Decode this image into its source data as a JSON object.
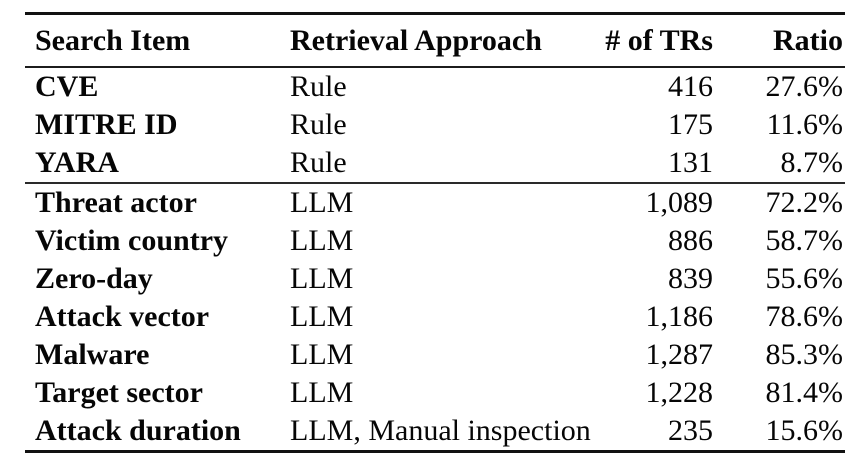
{
  "table": {
    "columns": {
      "search_item": "Search Item",
      "retrieval_approach": "Retrieval Approach",
      "num_trs": "# of TRs",
      "ratio": "Ratio"
    },
    "groups": [
      {
        "rows": [
          {
            "search_item": "CVE",
            "retrieval_approach": "Rule",
            "num_trs": "416",
            "ratio": "27.6%"
          },
          {
            "search_item": "MITRE ID",
            "retrieval_approach": "Rule",
            "num_trs": "175",
            "ratio": "11.6%"
          },
          {
            "search_item": "YARA",
            "retrieval_approach": "Rule",
            "num_trs": "131",
            "ratio": "8.7%"
          }
        ]
      },
      {
        "rows": [
          {
            "search_item": "Threat actor",
            "retrieval_approach": "LLM",
            "num_trs": "1,089",
            "ratio": "72.2%"
          },
          {
            "search_item": "Victim country",
            "retrieval_approach": "LLM",
            "num_trs": "886",
            "ratio": "58.7%"
          },
          {
            "search_item": "Zero-day",
            "retrieval_approach": "LLM",
            "num_trs": "839",
            "ratio": "55.6%"
          },
          {
            "search_item": "Attack vector",
            "retrieval_approach": "LLM",
            "num_trs": "1,186",
            "ratio": "78.6%"
          },
          {
            "search_item": "Malware",
            "retrieval_approach": "LLM",
            "num_trs": "1,287",
            "ratio": "85.3%"
          },
          {
            "search_item": "Target sector",
            "retrieval_approach": "LLM",
            "num_trs": "1,228",
            "ratio": "81.4%"
          },
          {
            "search_item": "Attack duration",
            "retrieval_approach": "LLM, Manual inspection",
            "num_trs": "235",
            "ratio": "15.6%"
          }
        ]
      }
    ],
    "colors": {
      "text": "#060606",
      "rule": "#121212",
      "background": "#ffffff"
    }
  }
}
